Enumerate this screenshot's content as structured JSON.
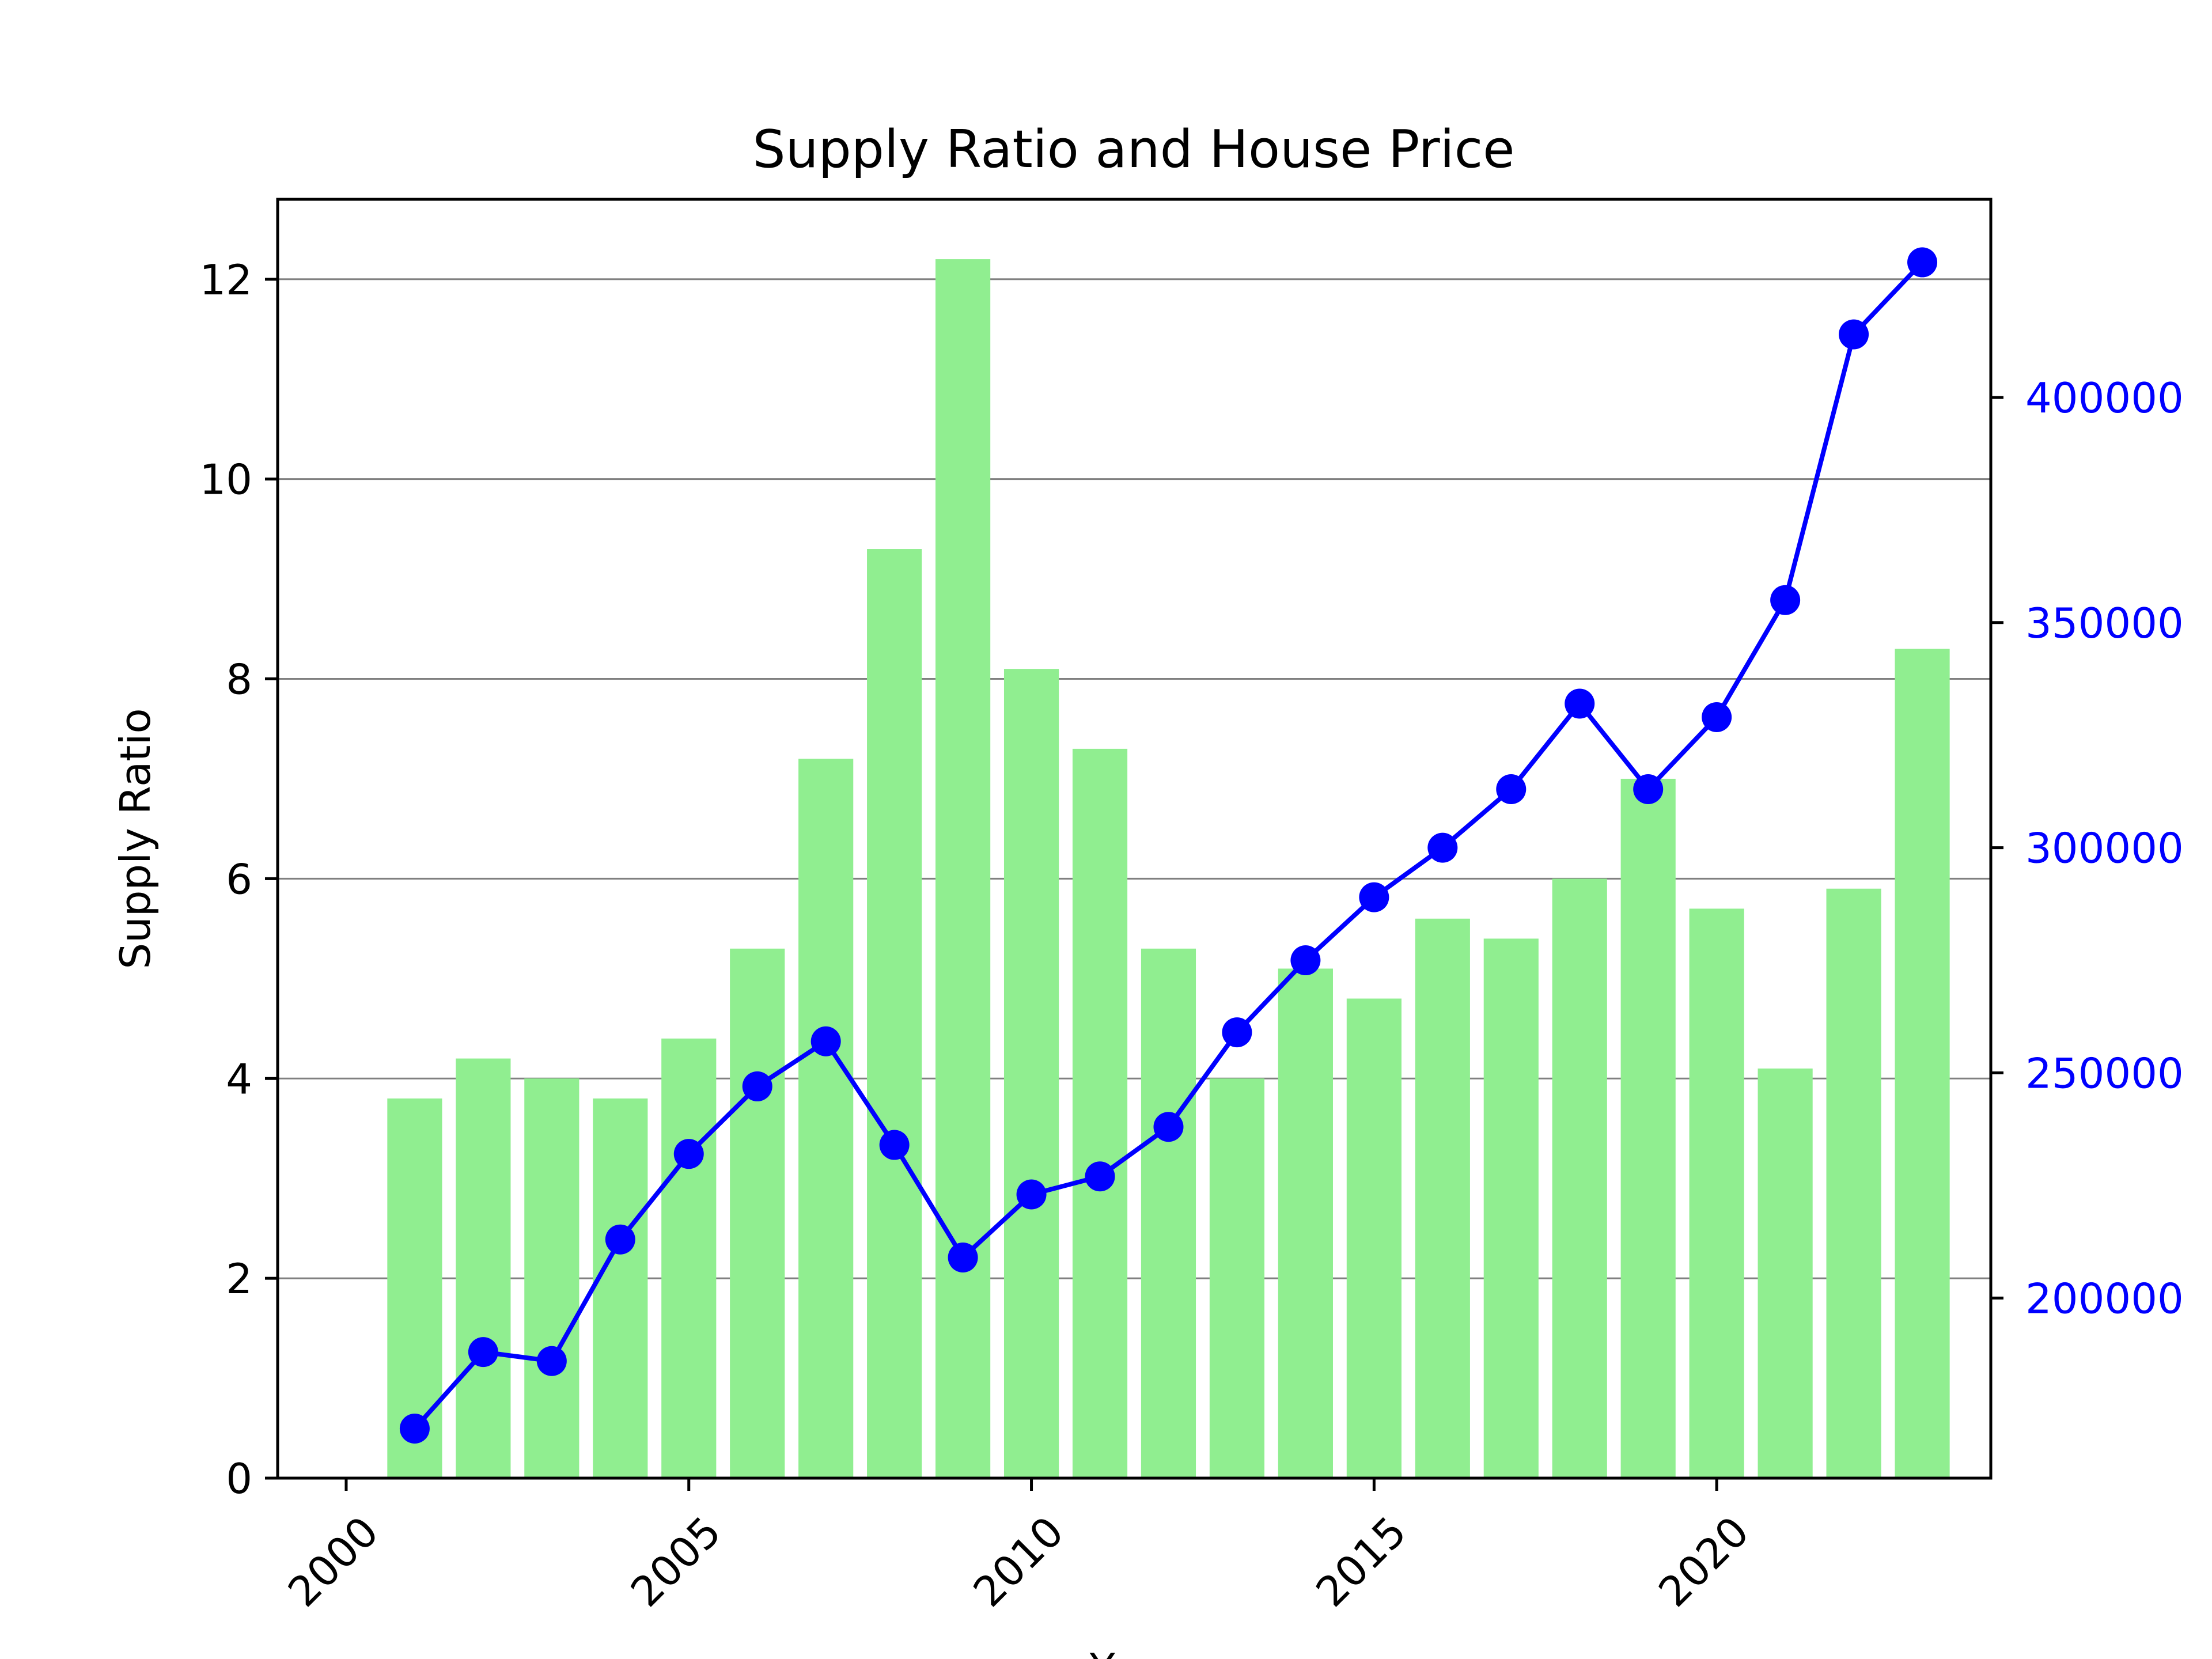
{
  "chart_data": {
    "type": "bar+line",
    "title": "Supply Ratio and House Price",
    "xlabel": "Year",
    "ylabel_left": "Supply Ratio",
    "ylabel_right": "",
    "xlim": [
      1999,
      2024
    ],
    "ylim_left": [
      0,
      12.8
    ],
    "ylim_right": [
      160000,
      444000
    ],
    "x_ticks": [
      2000,
      2005,
      2010,
      2015,
      2020
    ],
    "y_left_ticks": [
      0,
      2,
      4,
      6,
      8,
      10,
      12
    ],
    "y_right_ticks": [
      200000,
      250000,
      300000,
      350000,
      400000
    ],
    "grid": "horizontal (left axis)",
    "colors": {
      "bars": "#90ee90",
      "line": "#0000ff",
      "right_ticks": "#0000ff",
      "grid": "#808080"
    },
    "years": [
      2001,
      2002,
      2003,
      2004,
      2005,
      2006,
      2007,
      2008,
      2009,
      2010,
      2011,
      2012,
      2013,
      2014,
      2015,
      2016,
      2017,
      2018,
      2019,
      2020,
      2021,
      2022,
      2023
    ],
    "series": [
      {
        "kind": "bar",
        "axis": "left",
        "values": [
          3.8,
          4.2,
          4.0,
          3.8,
          4.4,
          5.3,
          7.2,
          9.3,
          12.2,
          8.1,
          7.3,
          5.3,
          4.0,
          5.1,
          4.8,
          5.6,
          5.4,
          6.0,
          7.0,
          5.7,
          4.1,
          5.9,
          8.3
        ]
      },
      {
        "kind": "line",
        "axis": "right",
        "values": [
          171000,
          188000,
          186000,
          213000,
          232000,
          247000,
          257000,
          234000,
          209000,
          223000,
          227000,
          238000,
          259000,
          275000,
          289000,
          300000,
          313000,
          332000,
          313000,
          329000,
          355000,
          414000,
          430000
        ]
      }
    ]
  }
}
